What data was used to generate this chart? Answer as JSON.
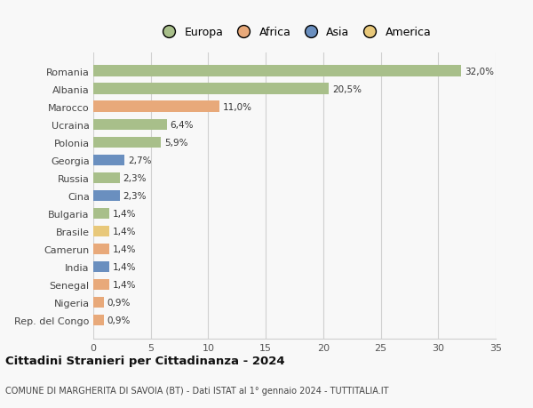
{
  "countries": [
    "Romania",
    "Albania",
    "Marocco",
    "Ucraina",
    "Polonia",
    "Georgia",
    "Russia",
    "Cina",
    "Bulgaria",
    "Brasile",
    "Camerun",
    "India",
    "Senegal",
    "Nigeria",
    "Rep. del Congo"
  ],
  "values": [
    32.0,
    20.5,
    11.0,
    6.4,
    5.9,
    2.7,
    2.3,
    2.3,
    1.4,
    1.4,
    1.4,
    1.4,
    1.4,
    0.9,
    0.9
  ],
  "labels": [
    "32,0%",
    "20,5%",
    "11,0%",
    "6,4%",
    "5,9%",
    "2,7%",
    "2,3%",
    "2,3%",
    "1,4%",
    "1,4%",
    "1,4%",
    "1,4%",
    "1,4%",
    "0,9%",
    "0,9%"
  ],
  "continents": [
    "Europa",
    "Europa",
    "Africa",
    "Europa",
    "Europa",
    "Asia",
    "Europa",
    "Asia",
    "Europa",
    "America",
    "Africa",
    "Asia",
    "Africa",
    "Africa",
    "Africa"
  ],
  "colors": {
    "Europa": "#a8bf8a",
    "Africa": "#e8a97a",
    "Asia": "#6a8fbf",
    "America": "#e8c87a"
  },
  "legend_order": [
    "Europa",
    "Africa",
    "Asia",
    "America"
  ],
  "xlim": [
    0,
    35
  ],
  "xticks": [
    0,
    5,
    10,
    15,
    20,
    25,
    30,
    35
  ],
  "title": "Cittadini Stranieri per Cittadinanza - 2024",
  "subtitle": "COMUNE DI MARGHERITA DI SAVOIA (BT) - Dati ISTAT al 1° gennaio 2024 - TUTTITALIA.IT",
  "bg_color": "#f8f8f8",
  "grid_color": "#d0d0d0",
  "bar_alpha": 1.0,
  "bar_height": 0.62
}
